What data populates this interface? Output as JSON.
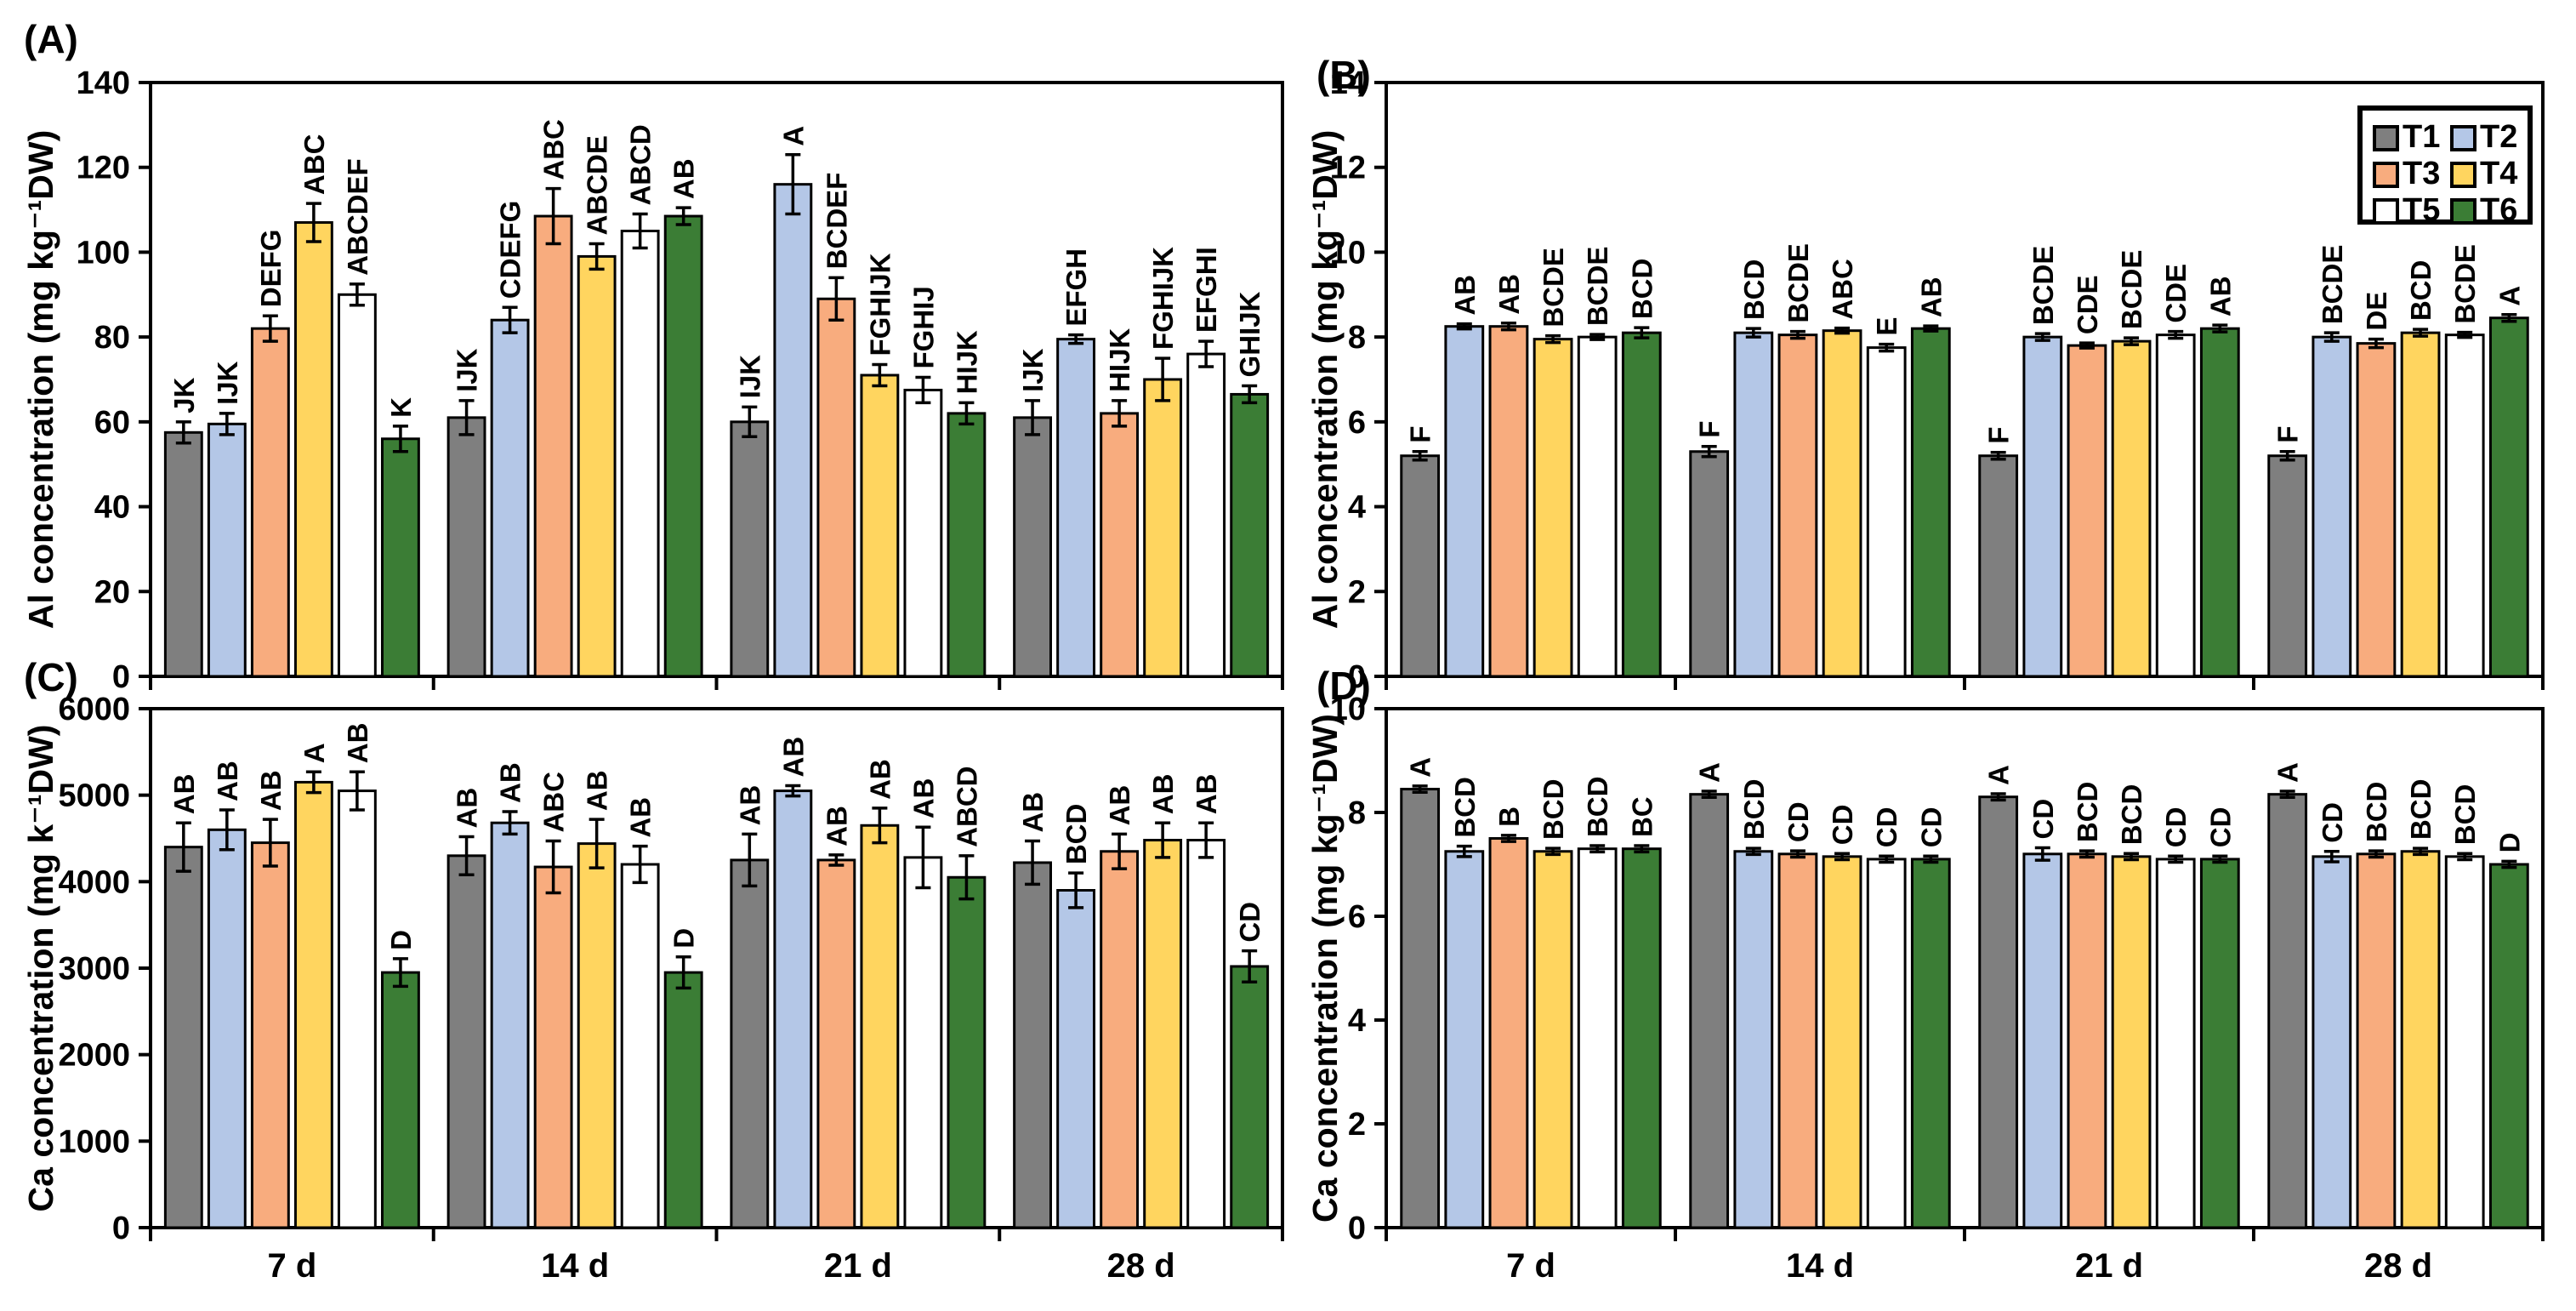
{
  "legend": {
    "position": "top-right-inside-panel-B",
    "items": [
      {
        "label": "T1",
        "color": "#7F7F7F"
      },
      {
        "label": "T2",
        "color": "#B4C7E7"
      },
      {
        "label": "T3",
        "color": "#F8AC7E"
      },
      {
        "label": "T4",
        "color": "#FFD55F"
      },
      {
        "label": "T5",
        "color": "#FFFFFF"
      },
      {
        "label": "T6",
        "color": "#3B7D35"
      }
    ]
  },
  "x_group_labels": [
    "7 d",
    "14 d",
    "21 d",
    "28 d"
  ],
  "chart_data": [
    {
      "tag": "(A)",
      "type": "bar",
      "ylabel": "Al concentration (mg kg⁻¹DW)",
      "ylim": [
        0,
        140
      ],
      "ystep": 20,
      "yticks": [
        0,
        20,
        40,
        60,
        80,
        100,
        120,
        140
      ],
      "grid": false,
      "show_x_tick_labels": false,
      "categories": [
        "7 d",
        "14 d",
        "21 d",
        "28 d"
      ],
      "series": [
        {
          "name": "T1",
          "values": [
            57.5,
            61,
            60,
            61
          ],
          "errors": [
            2.5,
            4,
            3.5,
            4
          ],
          "letters": [
            "JK",
            "IJK",
            "IJK",
            "IJK"
          ]
        },
        {
          "name": "T2",
          "values": [
            59.5,
            84,
            116,
            79.5
          ],
          "errors": [
            2.5,
            3,
            7,
            1
          ],
          "letters": [
            "IJK",
            "CDEFG",
            "A",
            "EFGH"
          ]
        },
        {
          "name": "T3",
          "values": [
            82,
            108.5,
            89,
            62
          ],
          "errors": [
            3,
            6.5,
            5,
            3
          ],
          "letters": [
            "DEFG",
            "ABC",
            "BCDEF",
            "HIJK"
          ]
        },
        {
          "name": "T4",
          "values": [
            107,
            99,
            71,
            70
          ],
          "errors": [
            4.5,
            3,
            2.5,
            5
          ],
          "letters": [
            "ABC",
            "ABCDE",
            "FGHIJK",
            "FGHIJK"
          ]
        },
        {
          "name": "T5",
          "values": [
            90,
            105,
            67.5,
            76
          ],
          "errors": [
            2.5,
            4,
            3,
            3
          ],
          "letters": [
            "ABCDEF",
            "ABCD",
            "FGHIJ",
            "EFGHI"
          ]
        },
        {
          "name": "T6",
          "values": [
            56,
            108.5,
            62,
            66.5
          ],
          "errors": [
            3,
            2,
            2.5,
            2
          ],
          "letters": [
            "K",
            "AB",
            "HIJK",
            "GHIJK"
          ]
        }
      ]
    },
    {
      "tag": "(B)",
      "type": "bar",
      "ylabel": "Al concentration (mg kg⁻¹DW)",
      "ylim": [
        0,
        14
      ],
      "ystep": 2,
      "yticks": [
        0,
        2,
        4,
        6,
        8,
        10,
        12,
        14
      ],
      "grid": false,
      "show_x_tick_labels": false,
      "categories": [
        "7 d",
        "14 d",
        "21 d",
        "28 d"
      ],
      "series": [
        {
          "name": "T1",
          "values": [
            5.2,
            5.3,
            5.2,
            5.2
          ],
          "errors": [
            0.1,
            0.12,
            0.08,
            0.1
          ],
          "letters": [
            "F",
            "F",
            "F",
            "F"
          ]
        },
        {
          "name": "T2",
          "values": [
            8.25,
            8.1,
            8.0,
            8.0
          ],
          "errors": [
            0.06,
            0.1,
            0.08,
            0.1
          ],
          "letters": [
            "AB",
            "BCD",
            "BCDE",
            "BCDE"
          ]
        },
        {
          "name": "T3",
          "values": [
            8.25,
            8.05,
            7.8,
            7.85
          ],
          "errors": [
            0.08,
            0.08,
            0.06,
            0.1
          ],
          "letters": [
            "AB",
            "BCDE",
            "CDE",
            "DE"
          ]
        },
        {
          "name": "T4",
          "values": [
            7.95,
            8.15,
            7.9,
            8.1
          ],
          "errors": [
            0.08,
            0.06,
            0.08,
            0.08
          ],
          "letters": [
            "BCDE",
            "ABC",
            "BCDE",
            "BCD"
          ]
        },
        {
          "name": "T5",
          "values": [
            8.0,
            7.75,
            8.05,
            8.05
          ],
          "errors": [
            0.06,
            0.08,
            0.08,
            0.06
          ],
          "letters": [
            "BCDE",
            "E",
            "CDE",
            "BCDE"
          ]
        },
        {
          "name": "T6",
          "values": [
            8.1,
            8.2,
            8.2,
            8.45
          ],
          "errors": [
            0.12,
            0.06,
            0.08,
            0.08
          ],
          "letters": [
            "BCD",
            "AB",
            "AB",
            "A"
          ]
        }
      ]
    },
    {
      "tag": "(C)",
      "type": "bar",
      "ylabel": "Ca concentration (mg k⁻¹DW)",
      "ylim": [
        0,
        6000
      ],
      "ystep": 1000,
      "yticks": [
        0,
        1000,
        2000,
        3000,
        4000,
        5000,
        6000
      ],
      "grid": false,
      "show_x_tick_labels": true,
      "categories": [
        "7 d",
        "14 d",
        "21 d",
        "28 d"
      ],
      "series": [
        {
          "name": "T1",
          "values": [
            4400,
            4300,
            4250,
            4220
          ],
          "errors": [
            280,
            220,
            300,
            250
          ],
          "letters": [
            "AB",
            "AB",
            "AB",
            "AB"
          ]
        },
        {
          "name": "T2",
          "values": [
            4600,
            4680,
            5050,
            3900
          ],
          "errors": [
            230,
            130,
            60,
            200
          ],
          "letters": [
            "AB",
            "AB",
            "AB",
            "BCD"
          ]
        },
        {
          "name": "T3",
          "values": [
            4450,
            4170,
            4250,
            4350
          ],
          "errors": [
            270,
            300,
            60,
            200
          ],
          "letters": [
            "AB",
            "ABC",
            "AB",
            "AB"
          ]
        },
        {
          "name": "T4",
          "values": [
            5150,
            4440,
            4650,
            4480
          ],
          "errors": [
            120,
            280,
            200,
            200
          ],
          "letters": [
            "A",
            "AB",
            "AB",
            "AB"
          ]
        },
        {
          "name": "T5",
          "values": [
            5050,
            4200,
            4280,
            4480
          ],
          "errors": [
            220,
            210,
            350,
            200
          ],
          "letters": [
            "AB",
            "AB",
            "AB",
            "AB"
          ]
        },
        {
          "name": "T6",
          "values": [
            2950,
            2950,
            4050,
            3020
          ],
          "errors": [
            160,
            180,
            250,
            180
          ],
          "letters": [
            "D",
            "D",
            "ABCD",
            "CD"
          ]
        }
      ]
    },
    {
      "tag": "(D)",
      "type": "bar",
      "ylabel": "Ca concentration (mg kg⁻¹DW)",
      "ylim": [
        0,
        10
      ],
      "ystep": 2,
      "yticks": [
        0,
        2,
        4,
        6,
        8,
        10
      ],
      "grid": false,
      "show_x_tick_labels": true,
      "categories": [
        "7 d",
        "14 d",
        "21 d",
        "28 d"
      ],
      "series": [
        {
          "name": "T1",
          "values": [
            8.45,
            8.35,
            8.3,
            8.35
          ],
          "errors": [
            0.06,
            0.06,
            0.06,
            0.06
          ],
          "letters": [
            "A",
            "A",
            "A",
            "A"
          ]
        },
        {
          "name": "T2",
          "values": [
            7.25,
            7.25,
            7.2,
            7.15
          ],
          "errors": [
            0.1,
            0.06,
            0.12,
            0.1
          ],
          "letters": [
            "BCD",
            "BCD",
            "CD",
            "CD"
          ]
        },
        {
          "name": "T3",
          "values": [
            7.5,
            7.2,
            7.2,
            7.2
          ],
          "errors": [
            0.06,
            0.06,
            0.06,
            0.06
          ],
          "letters": [
            "B",
            "CD",
            "BCD",
            "BCD"
          ]
        },
        {
          "name": "T4",
          "values": [
            7.25,
            7.15,
            7.15,
            7.25
          ],
          "errors": [
            0.06,
            0.06,
            0.06,
            0.06
          ],
          "letters": [
            "BCD",
            "CD",
            "BCD",
            "BCD"
          ]
        },
        {
          "name": "T5",
          "values": [
            7.3,
            7.1,
            7.1,
            7.15
          ],
          "errors": [
            0.06,
            0.06,
            0.06,
            0.06
          ],
          "letters": [
            "BCD",
            "CD",
            "CD",
            "BCD"
          ]
        },
        {
          "name": "T6",
          "values": [
            7.3,
            7.1,
            7.1,
            7.0
          ],
          "errors": [
            0.06,
            0.06,
            0.06,
            0.06
          ],
          "letters": [
            "BC",
            "CD",
            "CD",
            "D"
          ]
        }
      ]
    }
  ]
}
